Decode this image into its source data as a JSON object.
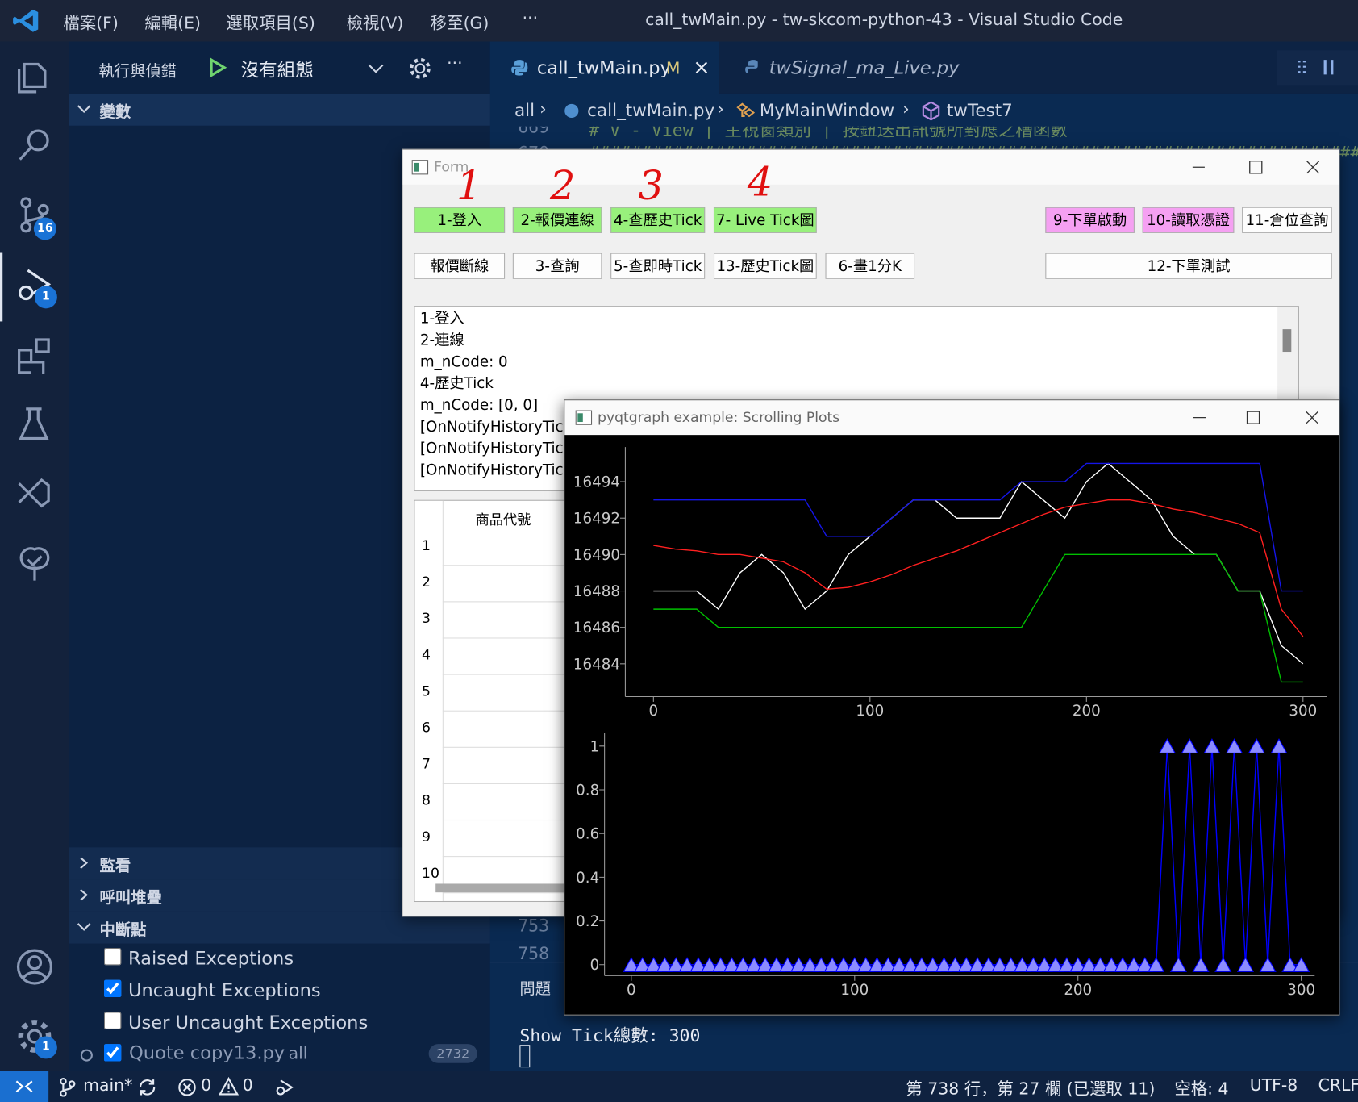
{
  "title_bar": {
    "menu": [
      "檔案(F)",
      "編輯(E)",
      "選取項目(S)",
      "檢視(V)",
      "移至(G)",
      "···"
    ],
    "window_title": "call_twMain.py - tw-skcom-python-43 - Visual Studio Code"
  },
  "activity_bar": {
    "badges": {
      "source_control": "16",
      "run_debug": "1",
      "manage": "1"
    }
  },
  "sidebar": {
    "title": "執行與偵錯",
    "configuration": "沒有組態",
    "more": "···",
    "sections": {
      "variables": "變數",
      "watch": "監看",
      "call_stack": "呼叫堆疊",
      "breakpoints": "中斷點"
    },
    "breakpoints": [
      {
        "label": "Raised Exceptions",
        "checked": false
      },
      {
        "label": "Uncaught Exceptions",
        "checked": true
      },
      {
        "label": "User Uncaught Exceptions",
        "checked": false
      },
      {
        "label": "Quote copy13.py",
        "checked": true,
        "path": "all",
        "line": "2732"
      }
    ]
  },
  "editor": {
    "tabs": [
      {
        "name": "call_twMain.py",
        "status": "M"
      },
      {
        "name": "twSignal_ma_Live.py"
      }
    ],
    "breadcrumb": [
      "all",
      "call_twMain.py",
      "MyMainWindow",
      "twTest7"
    ],
    "lines": [
      {
        "number": "669",
        "text": "# V - View | 主視窗類別 | 按鈕送出訊號所對應之槽函數"
      },
      {
        "number": "670",
        "text": "##########################################################################################"
      },
      {
        "number": "753"
      },
      {
        "number": "758"
      }
    ]
  },
  "panel": {
    "tab": "問題",
    "terminal": [
      "Show Tick總數:  300"
    ]
  },
  "status_bar": {
    "branch": "main*",
    "errors": "0",
    "warnings": "0",
    "cursor": "第 738 行，第 27 欄 (已選取 11)",
    "indent": "空格: 4",
    "encoding": "UTF-8",
    "eol": "CRLF"
  },
  "form": {
    "title": "Form",
    "annotations": [
      "1",
      "2",
      "3",
      "4"
    ],
    "buttons_row1": [
      "1-登入",
      "2-報價連線",
      "4-查歷史Tick",
      "7- Live Tick圖",
      "9-下單啟動",
      "10-讀取憑證",
      "11-倉位查詢"
    ],
    "buttons_row2": [
      "報價斷線",
      "3-查詢",
      "5-查即時Tick",
      "13-歷史Tick圖",
      "6-畫1分K",
      "12-下單測試"
    ],
    "log": [
      "1-登入",
      "2-連線",
      "m_nCode: 0",
      "4-歷史Tick",
      "m_nCode: [0, 0]",
      "[OnNotifyHistoryTick",
      "[OnNotifyHistoryTick",
      "[OnNotifyHistoryTick"
    ],
    "table": {
      "header": "商品代號",
      "rows": [
        "1",
        "2",
        "3",
        "4",
        "5",
        "6",
        "7",
        "8",
        "9",
        "10"
      ]
    }
  },
  "plot_window": {
    "title": "pyqtgraph example: Scrolling Plots"
  },
  "chart_data": [
    {
      "type": "line",
      "x": [
        0,
        10,
        20,
        30,
        40,
        50,
        60,
        70,
        80,
        90,
        100,
        110,
        120,
        130,
        140,
        150,
        160,
        170,
        180,
        190,
        200,
        210,
        220,
        230,
        240,
        250,
        260,
        270,
        280,
        290,
        300
      ],
      "xlim": [
        -13,
        311
      ],
      "ylim": [
        16482.2,
        16495.9
      ],
      "xticks": [
        0,
        100,
        200,
        300
      ],
      "yticks": [
        16484,
        16486,
        16488,
        16490,
        16492,
        16494
      ],
      "series": [
        {
          "color": "#ffffff",
          "values": [
            16488,
            16488,
            16488,
            16487,
            16489,
            16490,
            16489,
            16487,
            16488,
            16490,
            16491,
            16492,
            16493,
            16493,
            16492,
            16492,
            16492,
            16494,
            16493,
            16492,
            16494,
            16495,
            16494,
            16493,
            16491,
            16490,
            16490,
            16488,
            16488,
            16485,
            16484
          ]
        },
        {
          "color": "#ff2020",
          "values": [
            16490.5,
            16490.3,
            16490.2,
            16490,
            16490,
            16489.8,
            16489.6,
            16489,
            16488.1,
            16488.2,
            16488.5,
            16488.9,
            16489.4,
            16489.8,
            16490.2,
            16490.7,
            16491.2,
            16491.7,
            16492.2,
            16492.6,
            16492.8,
            16493,
            16493,
            16492.8,
            16492.5,
            16492.3,
            16492,
            16491.7,
            16491.2,
            16487,
            16485.5
          ]
        },
        {
          "color": "#1515e8",
          "values": [
            16493,
            16493,
            16493,
            16493,
            16493,
            16493,
            16493,
            16493,
            16491,
            16491,
            16491,
            16492,
            16493,
            16493,
            16493,
            16493,
            16493,
            16494,
            16494,
            16494,
            16495,
            16495,
            16495,
            16495,
            16495,
            16495,
            16495,
            16495,
            16495,
            16488,
            16488
          ]
        },
        {
          "color": "#00c000",
          "values": [
            16487,
            16487,
            16487,
            16486,
            16486,
            16486,
            16486,
            16486,
            16486,
            16486,
            16486,
            16486,
            16486,
            16486,
            16486,
            16486,
            16486,
            16486,
            16488,
            16490,
            16490,
            16490,
            16490,
            16490,
            16490,
            16490,
            16490,
            16488,
            16488,
            16483,
            16483
          ]
        }
      ]
    },
    {
      "type": "line",
      "marker": "triangle",
      "color": "#0000ff",
      "marker_fill": "#8c8cff",
      "x": [
        0,
        5,
        10,
        15,
        20,
        25,
        30,
        35,
        40,
        45,
        50,
        55,
        60,
        65,
        70,
        75,
        80,
        85,
        90,
        95,
        100,
        105,
        110,
        115,
        120,
        125,
        130,
        135,
        140,
        145,
        150,
        155,
        160,
        165,
        170,
        175,
        180,
        185,
        190,
        195,
        200,
        205,
        210,
        215,
        220,
        225,
        230,
        235,
        240,
        245,
        250,
        255,
        260,
        265,
        270,
        275,
        280,
        285,
        290,
        295,
        300
      ],
      "values": [
        0,
        0,
        0,
        0,
        0,
        0,
        0,
        0,
        0,
        0,
        0,
        0,
        0,
        0,
        0,
        0,
        0,
        0,
        0,
        0,
        0,
        0,
        0,
        0,
        0,
        0,
        0,
        0,
        0,
        0,
        0,
        0,
        0,
        0,
        0,
        0,
        0,
        0,
        0,
        0,
        0,
        0,
        0,
        0,
        0,
        0,
        0,
        0,
        1,
        0,
        1,
        0,
        1,
        0,
        1,
        0,
        1,
        0,
        1,
        0,
        0
      ],
      "xlim": [
        -12,
        306
      ],
      "ylim": [
        -0.05,
        1.06
      ],
      "xticks": [
        0,
        100,
        200,
        300
      ],
      "yticks": [
        0,
        0.2,
        0.4,
        0.6,
        0.8,
        1
      ]
    }
  ]
}
